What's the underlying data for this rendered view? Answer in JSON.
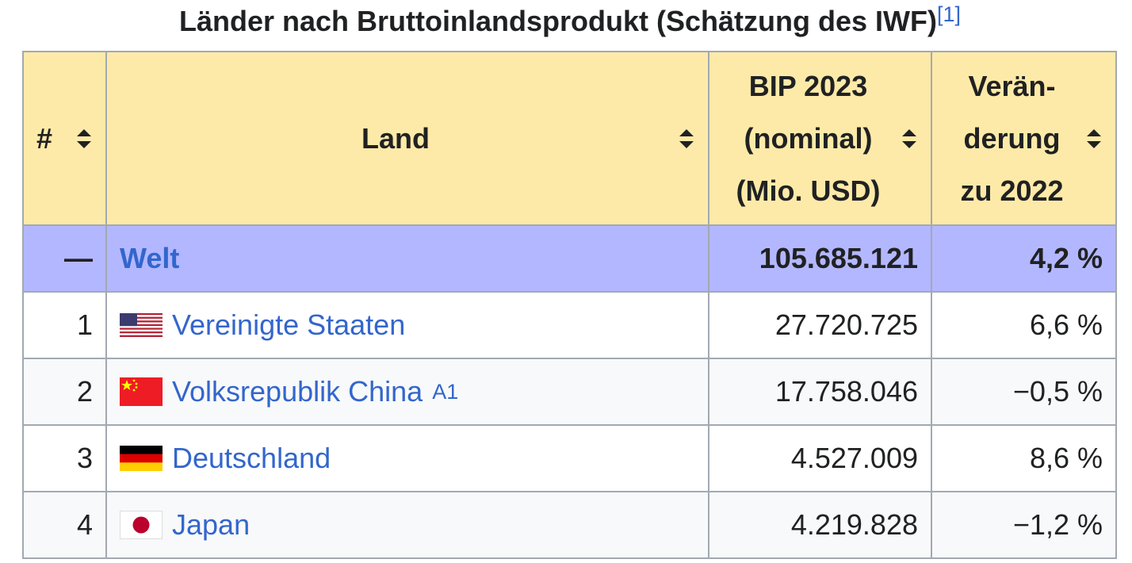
{
  "caption": {
    "title": "Länder nach Bruttoinlandsprodukt (Schätzung des IWF)",
    "ref": "[1]"
  },
  "table": {
    "header": [
      [
        "#"
      ],
      [
        "Land"
      ],
      [
        "BIP 2023",
        "(nominal)",
        "(Mio. USD)"
      ],
      [
        "Verän-",
        "derung",
        "zu 2022"
      ]
    ],
    "world": {
      "rank": "—",
      "country": "Welt",
      "gdp": "105.685.121",
      "change": "4,2 %"
    },
    "rows": [
      {
        "rank": "1",
        "country": "Vereinigte Staaten",
        "gdp": "27.720.725",
        "change": "6,6 %"
      },
      {
        "rank": "2",
        "country": "Volksrepublik China",
        "note": "A1",
        "gdp": "17.758.046",
        "change": "−0,5 %"
      },
      {
        "rank": "3",
        "country": "Deutschland",
        "gdp": "4.527.009",
        "change": "8,6 %"
      },
      {
        "rank": "4",
        "country": "Japan",
        "gdp": "4.219.828",
        "change": "−1,2 %"
      }
    ]
  }
}
